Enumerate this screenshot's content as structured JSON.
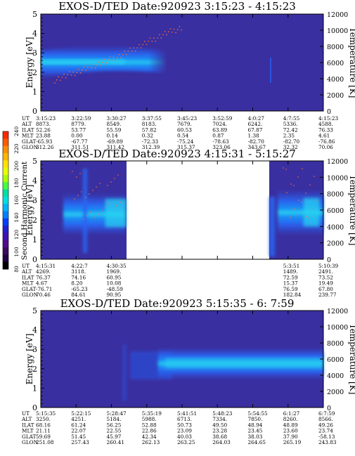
{
  "colors": {
    "background": "#3a2fa0",
    "band_core": "#2ad4f0",
    "band_mid": "#1a7af0",
    "band_outer": "#2a54e0",
    "temp_points": "#ff6a3a",
    "axis": "#000000"
  },
  "colorbar": {
    "label": "Second Harmonic Current",
    "ticks": [
      "240",
      "220",
      "200",
      "180",
      "160",
      "140",
      "120",
      "100",
      "80"
    ],
    "colors": [
      "#ff2a00",
      "#ff5a00",
      "#ff8c00",
      "#ffb400",
      "#ffe000",
      "#e6ff00",
      "#a8ff00",
      "#40ff40",
      "#00e0a0",
      "#00e0e0",
      "#00b4ff",
      "#0080ff",
      "#0040ff",
      "#2020d0",
      "#4010b0",
      "#500a90",
      "#3a0a60",
      "#200440",
      "#000000"
    ]
  },
  "chart_data": [
    {
      "type": "heatmap",
      "title": "EXOS-D/TED   Date:920923  3:15:23 - 4:15:23",
      "ylabel": "Energy [eV]",
      "y2label": "Temperature [K]",
      "ylim": [
        0,
        5
      ],
      "y_ticks": [
        "0",
        "1",
        "2",
        "3",
        "4",
        "5"
      ],
      "y2lim": [
        0,
        12000
      ],
      "y2_ticks": [
        "0",
        "2000",
        "4000",
        "6000",
        "8000",
        "10000",
        "12000"
      ],
      "row_labels": [
        "UT",
        "ALT",
        "ILAT",
        "MLT",
        "GLAT",
        "GLON"
      ],
      "columns": [
        [
          "3:15:23",
          "8873.",
          "52.26",
          "23.88",
          "-65.93",
          "312.26"
        ],
        [
          "3:22:59",
          "8779.",
          "53.77",
          "0.00",
          "-67.77",
          "311.51"
        ],
        [
          "3:30:27",
          "8549.",
          "55.59",
          "0.14",
          "-69.89",
          "311.42"
        ],
        [
          "3:37:55",
          "8183.",
          "57.82",
          "0.32",
          "-72.33",
          "312.39"
        ],
        [
          "3:45:23",
          "7679.",
          "60.53",
          "0.54",
          "-75.24",
          "315.37"
        ],
        [
          "3:52:59",
          "7024.",
          "63.89",
          "0.87",
          "-78.63",
          "323.06"
        ],
        [
          "4:0:27",
          "6242.",
          "67.87",
          "1.38",
          "-82.70",
          "343.67"
        ],
        [
          "4:7:55",
          "5336.",
          "72.42",
          "2.35",
          "-82.70",
          "32.32"
        ],
        [
          "4:15:23",
          "4588.",
          "76.33",
          "4.61",
          "-76.86",
          "70.06"
        ]
      ],
      "band": {
        "center_eV": [
          2.4,
          2.65,
          2.9,
          2.9,
          2.75
        ],
        "x": [
          0,
          0.25,
          0.5,
          0.62,
          0.68
        ],
        "spread": [
          0.45,
          0.5,
          0.5,
          0.45,
          0.3
        ]
      },
      "temperature_points_eV": [
        1.6,
        1.9,
        2.2,
        2.5,
        2.8,
        3.2,
        3.6,
        4.0,
        4.3
      ]
    },
    {
      "type": "heatmap",
      "title": "EXOS-D/TED   Date:920923  4:15:31 - 5:15:27",
      "ylabel": "Energy [eV]",
      "y2label": "Temperature [K]",
      "ylim": [
        0,
        5
      ],
      "y_ticks": [
        "0",
        "1",
        "2",
        "3",
        "4",
        "5"
      ],
      "y2lim": [
        0,
        12000
      ],
      "y2_ticks": [
        "0",
        "2000",
        "4000",
        "6000",
        "8000",
        "10000",
        "12000"
      ],
      "data_gap": [
        0.26,
        0.82
      ],
      "row_labels": [
        "UT",
        "ALT",
        "ILAT",
        "MLT",
        "GLAT",
        "GLON"
      ],
      "columns": [
        [
          "4:15:31",
          "4269.",
          "76.37",
          "4.67",
          "-76.71",
          "70.46"
        ],
        [
          "4:22:7",
          "3118.",
          "74.16",
          "8.20",
          "-65.23",
          "84.61"
        ],
        [
          "4:30:35",
          "1969.",
          "60.95",
          "10.08",
          "-48.59",
          "90.95"
        ],
        [
          "",
          "",
          "",
          "",
          "",
          ""
        ],
        [
          "",
          "",
          "",
          "",
          "",
          ""
        ],
        [
          "",
          "",
          "",
          "",
          "",
          ""
        ],
        [
          "",
          "",
          "",
          "",
          "",
          ""
        ],
        [
          "5:3:51",
          "1489.",
          "72.59",
          "15.37",
          "76.59",
          "182.84"
        ],
        [
          "5:10:39",
          "2491.",
          "73.52",
          "19.49",
          "67.80",
          "239.77"
        ]
      ]
    },
    {
      "type": "heatmap",
      "title": "EXOS-D/TED   Date:920923  5:15:35 - 6: 7:59",
      "ylabel": "Energy [eV]",
      "y2label": "Temperature [K]",
      "ylim": [
        0,
        5
      ],
      "y_ticks": [
        "0",
        "1",
        "2",
        "3",
        "4",
        "5"
      ],
      "y2lim": [
        0,
        12000
      ],
      "y2_ticks": [
        "0",
        "2000",
        "4000",
        "6000",
        "8000",
        "10000",
        "12000"
      ],
      "row_labels": [
        "UT",
        "ALT",
        "ILAT",
        "MLT",
        "GLAT",
        "GLON"
      ],
      "columns": [
        [
          "5:15:35",
          "3250.",
          "68.16",
          "21.11",
          "59.69",
          "251.08"
        ],
        [
          "5:22:15",
          "4251.",
          "61.24",
          "22.07",
          "51.45",
          "257.43"
        ],
        [
          "5:28:47",
          "5184.",
          "56.25",
          "22.55",
          "45.97",
          "260.41"
        ],
        [
          "5:35:19",
          "5988.",
          "52.88",
          "22.86",
          "42.34",
          "262.13"
        ],
        [
          "5:41:51",
          "6713.",
          "50.73",
          "23.09",
          "40.03",
          "263.25"
        ],
        [
          "5:48:23",
          "7334.",
          "49.50",
          "23.28",
          "38.68",
          "264.03"
        ],
        [
          "5:54:55",
          "7850.",
          "48.94",
          "23.45",
          "38.03",
          "264.65"
        ],
        [
          "6:1:27",
          "8260.",
          "48.89",
          "23.60",
          "37.90",
          "265.19"
        ],
        [
          "6:7:59",
          "8566.",
          "49.26",
          "23.74",
          "-58.13",
          "243.83"
        ]
      ]
    }
  ]
}
